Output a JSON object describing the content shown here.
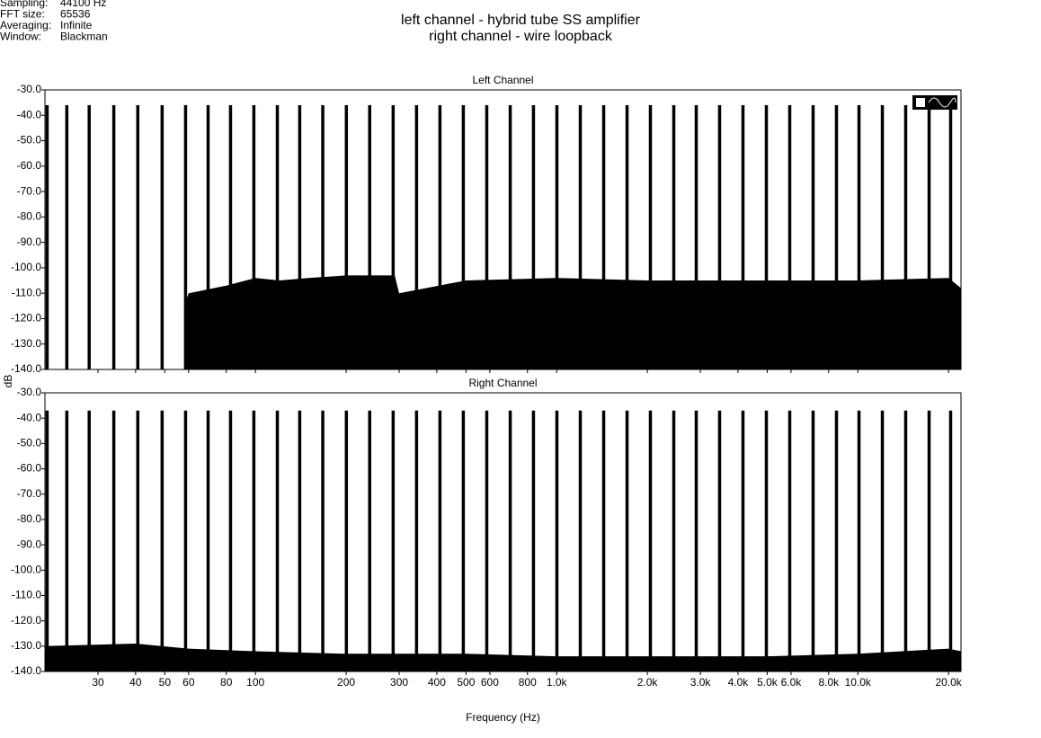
{
  "header": {
    "info": [
      {
        "label": "Sampling:",
        "value": "44100 Hz"
      },
      {
        "label": "FFT size:",
        "value": "65536"
      },
      {
        "label": "Averaging:",
        "value": "Infinite"
      },
      {
        "label": "Window:",
        "value": "Blackman"
      }
    ],
    "title": [
      "left channel - hybrid tube SS amplifier",
      "right channel - wire loopback"
    ]
  },
  "chart_data": [
    {
      "type": "spectrum",
      "title": "Left Channel",
      "log_x": true,
      "grid": false,
      "xlim": [
        20,
        22000
      ],
      "ylim": [
        -140,
        -30
      ],
      "yticks": [
        {
          "value": -30,
          "label": "-30.0"
        },
        {
          "value": -40,
          "label": "-40.0"
        },
        {
          "value": -50,
          "label": "-50.0"
        },
        {
          "value": -60,
          "label": "-60.0"
        },
        {
          "value": -70,
          "label": "-70.0"
        },
        {
          "value": -80,
          "label": "-80.0"
        },
        {
          "value": -90,
          "label": "-90.0"
        },
        {
          "value": -100,
          "label": "-100.0"
        },
        {
          "value": -110,
          "label": "-110.0"
        },
        {
          "value": -120,
          "label": "-120.0"
        },
        {
          "value": -130,
          "label": "-130.0"
        },
        {
          "value": -140,
          "label": "-140.0"
        }
      ],
      "series": [
        {
          "style": "area",
          "color": "#000000",
          "x": [
            58,
            60,
            80,
            100,
            120,
            150,
            200,
            290,
            300,
            500,
            1000,
            2000,
            5000,
            10000,
            20000,
            22000
          ],
          "values": [
            -115,
            -110,
            -107,
            -104,
            -105,
            -104,
            -103,
            -103,
            -110,
            -105,
            -104,
            -105,
            -105,
            -105,
            -104,
            -108
          ]
        },
        {
          "style": "stem",
          "color": "#000000",
          "x": [
            20.3,
            23.6,
            28,
            33.8,
            40.6,
            48.9,
            58.5,
            69.5,
            82.5,
            98.6,
            118,
            140,
            167,
            200,
            239,
            286,
            342,
            409,
            489,
            585,
            700,
            836,
            1000,
            1196,
            1430,
            1710,
            2044,
            2444,
            2902,
            3469,
            4148,
            4960,
            5930,
            7090,
            8477,
            10070,
            12040,
            14390,
            17210,
            20290
          ],
          "values": [
            -36,
            -36,
            -36,
            -36,
            -36,
            -36,
            -36,
            -36,
            -36,
            -36,
            -36,
            -36,
            -36,
            -36,
            -36,
            -36,
            -36,
            -36,
            -36,
            -36,
            -36,
            -36,
            -36,
            -36,
            -36,
            -36,
            -36,
            -36,
            -36,
            -36,
            -36,
            -36,
            -36,
            -36,
            -36,
            -36,
            -36,
            -36,
            -36,
            -36
          ]
        }
      ]
    },
    {
      "type": "spectrum",
      "title": "Right Channel",
      "log_x": true,
      "grid": false,
      "ylabel": "dB",
      "xlabel": "Frequency (Hz)",
      "xlim": [
        20,
        22000
      ],
      "ylim": [
        -140,
        -30
      ],
      "xticks": [
        30,
        40,
        50,
        60,
        80,
        100,
        200,
        300,
        400,
        500,
        600,
        800,
        {
          "value": 1000,
          "label": "1.0k"
        },
        {
          "value": 2000,
          "label": "2.0k"
        },
        {
          "value": 3000,
          "label": "3.0k"
        },
        {
          "value": 4000,
          "label": "4.0k"
        },
        {
          "value": 5000,
          "label": "5.0k"
        },
        {
          "value": 6000,
          "label": "6.0k"
        },
        {
          "value": 8000,
          "label": "8.0k"
        },
        {
          "value": 10000,
          "label": "10.0k"
        },
        {
          "value": 20000,
          "label": "20.0k"
        }
      ],
      "yticks": [
        {
          "value": -30,
          "label": "-30.0"
        },
        {
          "value": -40,
          "label": "-40.0"
        },
        {
          "value": -50,
          "label": "-50.0"
        },
        {
          "value": -60,
          "label": "-60.0"
        },
        {
          "value": -70,
          "label": "-70.0"
        },
        {
          "value": -80,
          "label": "-80.0"
        },
        {
          "value": -90,
          "label": "-90.0"
        },
        {
          "value": -100,
          "label": "-100.0"
        },
        {
          "value": -110,
          "label": "-110.0"
        },
        {
          "value": -120,
          "label": "-120.0"
        },
        {
          "value": -130,
          "label": "-130.0"
        },
        {
          "value": -140,
          "label": "-140.0"
        }
      ],
      "series": [
        {
          "style": "area",
          "color": "#000000",
          "x": [
            20,
            40,
            60,
            100,
            200,
            500,
            1000,
            2000,
            5000,
            10000,
            20000,
            22000
          ],
          "values": [
            -130,
            -129,
            -131,
            -132,
            -133,
            -133,
            -134,
            -134,
            -134,
            -133,
            -131,
            -132
          ]
        },
        {
          "style": "stem",
          "color": "#000000",
          "x": [
            20.3,
            23.6,
            28,
            33.8,
            40.6,
            48.9,
            58.5,
            69.5,
            82.5,
            98.6,
            118,
            140,
            167,
            200,
            239,
            286,
            342,
            409,
            489,
            585,
            700,
            836,
            1000,
            1196,
            1430,
            1710,
            2044,
            2444,
            2902,
            3469,
            4148,
            4960,
            5930,
            7090,
            8477,
            10070,
            12040,
            14390,
            17210,
            20290
          ],
          "values": [
            -37,
            -37,
            -37,
            -37,
            -37,
            -37,
            -37,
            -37,
            -37,
            -37,
            -37,
            -37,
            -37,
            -37,
            -37,
            -37,
            -37,
            -37,
            -37,
            -37,
            -37,
            -37,
            -37,
            -37,
            -37,
            -37,
            -37,
            -37,
            -37,
            -37,
            -37,
            -37,
            -37,
            -37,
            -37,
            -37,
            -37,
            -37,
            -37,
            -37
          ]
        }
      ]
    }
  ]
}
